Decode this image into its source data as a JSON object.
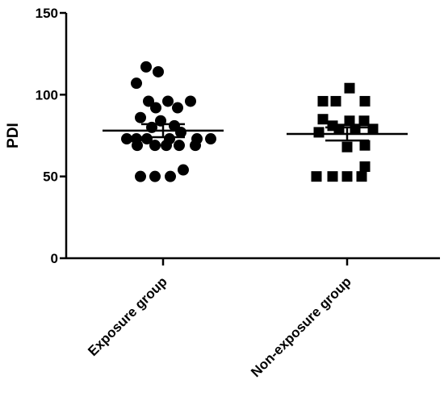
{
  "chart_data": {
    "type": "scatter",
    "title": "",
    "xlabel": "",
    "ylabel": "PDI",
    "ylim": [
      0,
      150
    ],
    "yticks": [
      0,
      50,
      100,
      150
    ],
    "categories": [
      "Exposure group",
      "Non-exposure group"
    ],
    "grid": false,
    "series": [
      {
        "marker": "circle",
        "color": "#000000",
        "mean": 78,
        "sem_low": 74,
        "sem_high": 82,
        "points": [
          {
            "x": -0.21,
            "y": 117
          },
          {
            "x": -0.06,
            "y": 114
          },
          {
            "x": -0.33,
            "y": 107
          },
          {
            "x": -0.18,
            "y": 96
          },
          {
            "x": 0.06,
            "y": 96
          },
          {
            "x": 0.34,
            "y": 96
          },
          {
            "x": -0.09,
            "y": 92
          },
          {
            "x": 0.18,
            "y": 92
          },
          {
            "x": -0.28,
            "y": 86
          },
          {
            "x": -0.03,
            "y": 84
          },
          {
            "x": 0.14,
            "y": 81
          },
          {
            "x": -0.14,
            "y": 80
          },
          {
            "x": 0.22,
            "y": 77
          },
          {
            "x": -0.45,
            "y": 73
          },
          {
            "x": -0.33,
            "y": 73
          },
          {
            "x": -0.2,
            "y": 73
          },
          {
            "x": 0.08,
            "y": 73
          },
          {
            "x": 0.42,
            "y": 73
          },
          {
            "x": 0.59,
            "y": 73
          },
          {
            "x": -0.32,
            "y": 69
          },
          {
            "x": -0.1,
            "y": 69
          },
          {
            "x": 0.04,
            "y": 69
          },
          {
            "x": 0.2,
            "y": 69
          },
          {
            "x": 0.4,
            "y": 69
          },
          {
            "x": 0.25,
            "y": 54
          },
          {
            "x": -0.28,
            "y": 50
          },
          {
            "x": -0.1,
            "y": 50
          },
          {
            "x": 0.09,
            "y": 50
          }
        ]
      },
      {
        "marker": "square",
        "color": "#000000",
        "mean": 76,
        "sem_low": 72,
        "sem_high": 80,
        "points": [
          {
            "x": 0.03,
            "y": 104
          },
          {
            "x": -0.3,
            "y": 96
          },
          {
            "x": -0.14,
            "y": 96
          },
          {
            "x": 0.22,
            "y": 96
          },
          {
            "x": -0.3,
            "y": 85
          },
          {
            "x": -0.18,
            "y": 81
          },
          {
            "x": 0.03,
            "y": 84
          },
          {
            "x": 0.21,
            "y": 84
          },
          {
            "x": -0.1,
            "y": 79
          },
          {
            "x": 0.1,
            "y": 79
          },
          {
            "x": 0.32,
            "y": 79
          },
          {
            "x": -0.35,
            "y": 77
          },
          {
            "x": 0.0,
            "y": 68
          },
          {
            "x": 0.22,
            "y": 69
          },
          {
            "x": 0.22,
            "y": 56
          },
          {
            "x": -0.38,
            "y": 50
          },
          {
            "x": -0.18,
            "y": 50
          },
          {
            "x": 0.0,
            "y": 50
          },
          {
            "x": 0.18,
            "y": 50
          }
        ]
      }
    ]
  }
}
